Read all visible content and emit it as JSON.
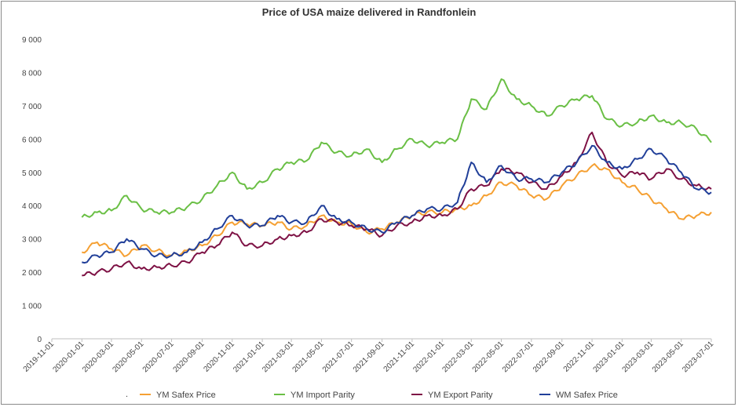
{
  "chart_data": {
    "type": "line",
    "title": "Price of USA maize delivered in Randfonlein",
    "xlabel": "",
    "ylabel": "",
    "ylim": [
      0,
      9000
    ],
    "yticks": [
      0,
      1000,
      2000,
      3000,
      4000,
      5000,
      6000,
      7000,
      8000,
      9000
    ],
    "ytick_labels": [
      "0",
      "1 000",
      "2 000",
      "3 000",
      "4 000",
      "5 000",
      "6 000",
      "7 000",
      "8 000",
      "9 000"
    ],
    "xlim": [
      "2019-11-01",
      "2023-07-01"
    ],
    "xtick_labels": [
      "2019-11-01",
      "2020-01-01",
      "2020-03-01",
      "2020-05-01",
      "2020-07-01",
      "2020-09-01",
      "2020-11-01",
      "2021-01-01",
      "2021-03-01",
      "2021-05-01",
      "2021-07-01",
      "2021-09-01",
      "2021-11-01",
      "2022-01-01",
      "2022-03-01",
      "2022-05-01",
      "2022-07-01",
      "2022-09-01",
      "2022-11-01",
      "2023-01-01",
      "2023-03-01",
      "2023-05-01",
      "2023-07-01"
    ],
    "grid": false,
    "legend_position": "bottom",
    "x": [
      "2020-01-01",
      "2020-02-01",
      "2020-03-01",
      "2020-04-01",
      "2020-05-01",
      "2020-06-01",
      "2020-07-01",
      "2020-08-01",
      "2020-09-01",
      "2020-10-01",
      "2020-11-01",
      "2020-12-01",
      "2021-01-01",
      "2021-02-01",
      "2021-03-01",
      "2021-04-01",
      "2021-05-01",
      "2021-06-01",
      "2021-07-01",
      "2021-08-01",
      "2021-09-01",
      "2021-10-01",
      "2021-11-01",
      "2021-12-01",
      "2022-01-01",
      "2022-02-01",
      "2022-03-01",
      "2022-04-01",
      "2022-05-01",
      "2022-06-01",
      "2022-07-01",
      "2022-08-01",
      "2022-09-01",
      "2022-10-01",
      "2022-11-01",
      "2022-12-01",
      "2023-01-01",
      "2023-02-01",
      "2023-03-01",
      "2023-04-01",
      "2023-05-01",
      "2023-06-01",
      "2023-07-01"
    ],
    "series": [
      {
        "name": "YM Safex Price",
        "color": "#F5A033",
        "values": [
          2600,
          2900,
          2700,
          2500,
          2800,
          2650,
          2500,
          2650,
          2800,
          3100,
          3500,
          3450,
          3400,
          3500,
          3300,
          3400,
          3700,
          3500,
          3450,
          3200,
          3300,
          3500,
          3700,
          3800,
          3800,
          3900,
          4000,
          4300,
          4700,
          4600,
          4300,
          4200,
          4600,
          4900,
          5200,
          5100,
          4700,
          4500,
          4200,
          3900,
          3600,
          3700,
          3800
        ]
      },
      {
        "name": "YM Import Parity",
        "color": "#6ABF45",
        "values": [
          3650,
          3800,
          3850,
          4300,
          3900,
          3800,
          3800,
          3950,
          4200,
          4600,
          5000,
          4500,
          4700,
          5100,
          5300,
          5350,
          5900,
          5600,
          5500,
          5700,
          5300,
          5700,
          6000,
          5800,
          5900,
          6000,
          7200,
          6900,
          7800,
          7200,
          7000,
          6700,
          7000,
          7200,
          7300,
          6600,
          6400,
          6500,
          6700,
          6500,
          6500,
          6300,
          5900
        ]
      },
      {
        "name": "YM Export Parity",
        "color": "#7E1245",
        "values": [
          1900,
          2000,
          2100,
          2300,
          2100,
          2150,
          2200,
          2300,
          2600,
          2800,
          3200,
          2800,
          2800,
          3000,
          3100,
          3200,
          3600,
          3500,
          3400,
          3300,
          3100,
          3400,
          3500,
          3700,
          3700,
          3900,
          4500,
          4600,
          5100,
          5000,
          4700,
          4500,
          4900,
          5300,
          6200,
          5300,
          4900,
          5000,
          4800,
          5100,
          4800,
          4600,
          4500
        ]
      },
      {
        "name": "WM Safex Price",
        "color": "#213F99",
        "values": [
          2300,
          2500,
          2600,
          3000,
          2700,
          2500,
          2500,
          2600,
          2900,
          3300,
          3700,
          3400,
          3400,
          3700,
          3500,
          3500,
          4000,
          3600,
          3500,
          3300,
          3200,
          3500,
          3700,
          3900,
          3900,
          4100,
          5300,
          4700,
          5200,
          4800,
          4800,
          4700,
          5000,
          5300,
          5800,
          5300,
          5100,
          5400,
          5700,
          5400,
          5000,
          4500,
          4400
        ]
      }
    ]
  }
}
